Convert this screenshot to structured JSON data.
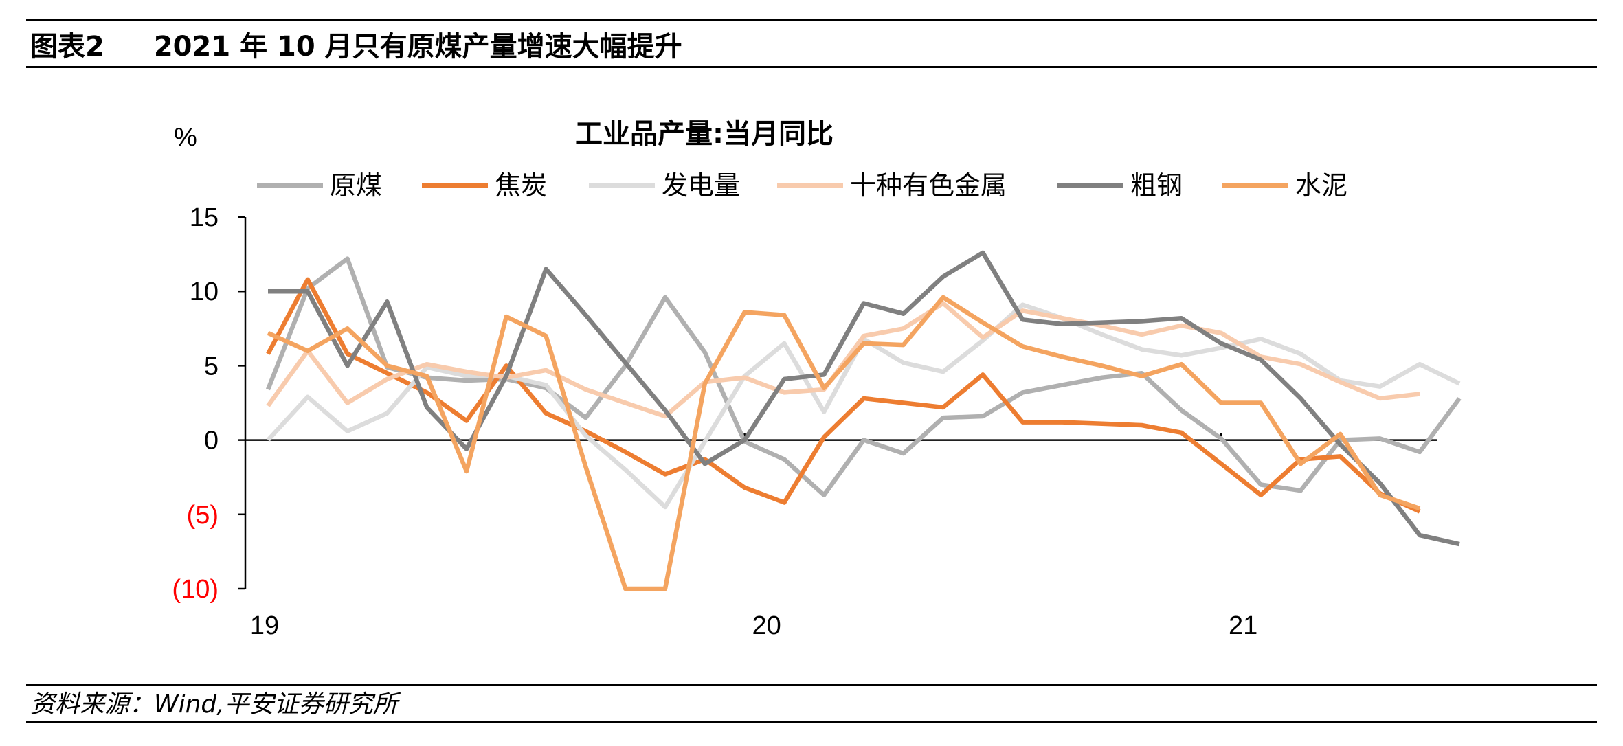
{
  "header": {
    "figure_no": "图表2",
    "title": "2021 年 10 月只有原煤产量增速大幅提升"
  },
  "footer": {
    "source": "资料来源：Wind,平安证券研究所"
  },
  "colors": {
    "negative_label": "#ff0000",
    "axis": "#000000"
  },
  "chart_data": {
    "type": "line",
    "title": "工业品产量:当月同比",
    "y_unit_label": "%",
    "ylim": [
      -10,
      15
    ],
    "y_ticks": [
      15,
      10,
      5,
      0,
      -5,
      -10
    ],
    "y_tick_labels": [
      "15",
      "10",
      "5",
      "0",
      "(5)",
      "(10)"
    ],
    "x_tick_labels": [
      "19",
      "20",
      "21"
    ],
    "x_tick_label_index": [
      0,
      12,
      24
    ],
    "grid": false,
    "legend_position": "top",
    "x": [
      "2019-01",
      "2019-02",
      "2019-03",
      "2019-04",
      "2019-05",
      "2019-06",
      "2019-07",
      "2019-08",
      "2019-09",
      "2019-10",
      "2019-11",
      "2019-12",
      "2020-01",
      "2020-02",
      "2020-03",
      "2020-04",
      "2020-05",
      "2020-06",
      "2020-07",
      "2020-08",
      "2020-09",
      "2020-10",
      "2020-11",
      "2020-12",
      "2021-01",
      "2021-02",
      "2021-03",
      "2021-04",
      "2021-05",
      "2021-06",
      "2021-07",
      "2021-08",
      "2021-09",
      "2021-10"
    ],
    "series": [
      {
        "name": "原煤",
        "color": "#b0b0b0",
        "values": [
          3.4,
          10.2,
          12.2,
          4.9,
          4.2,
          4.0,
          4.1,
          3.5,
          1.5,
          5.0,
          9.6,
          5.9,
          -0.1,
          -1.3,
          -3.7,
          0.0,
          -0.9,
          1.5,
          1.6,
          3.2,
          3.7,
          4.2,
          4.5,
          2.0,
          0.1,
          -3.0,
          -3.4,
          -0.0,
          0.1,
          -0.8,
          2.8,
          null,
          null,
          null
        ]
      },
      {
        "name": "焦炭",
        "color": "#ed7d31",
        "values": [
          5.8,
          10.8,
          5.8,
          4.5,
          3.2,
          1.3,
          5.0,
          1.8,
          0.6,
          -0.8,
          -2.3,
          -1.3,
          -3.2,
          -4.2,
          0.2,
          2.8,
          2.5,
          2.2,
          4.4,
          1.2,
          1.2,
          1.1,
          1.0,
          0.5,
          -1.6,
          -3.7,
          -1.3,
          -1.1,
          -3.6,
          -4.8,
          null,
          null,
          null,
          null
        ]
      },
      {
        "name": "发电量",
        "color": "#dcdcdc",
        "values": [
          0.0,
          2.9,
          0.6,
          1.8,
          4.9,
          4.3,
          4.3,
          3.7,
          0.3,
          -2.0,
          -4.5,
          -0.1,
          4.3,
          6.5,
          1.9,
          6.8,
          5.2,
          4.6,
          6.7,
          9.1,
          8.2,
          7.1,
          6.1,
          5.7,
          6.2,
          6.8,
          5.8,
          4.0,
          3.6,
          5.1,
          3.8,
          null,
          null,
          null
        ]
      },
      {
        "name": "十种有色金属",
        "color": "#f8cbad",
        "values": [
          2.3,
          6.0,
          2.5,
          4.1,
          5.1,
          4.6,
          4.2,
          4.7,
          3.4,
          2.5,
          1.6,
          3.9,
          4.2,
          3.2,
          3.4,
          7.0,
          7.5,
          9.2,
          6.9,
          8.7,
          8.2,
          7.7,
          7.1,
          7.7,
          7.2,
          5.6,
          5.1,
          3.9,
          2.8,
          3.1,
          null,
          null,
          null,
          null
        ]
      },
      {
        "name": "粗钢",
        "color": "#808080",
        "values": [
          10.0,
          10.0,
          5.0,
          9.3,
          2.2,
          -0.6,
          4.3,
          11.5,
          8.4,
          5.2,
          2.0,
          -1.6,
          0.0,
          4.1,
          4.4,
          9.2,
          8.5,
          11.0,
          12.6,
          8.1,
          7.8,
          7.9,
          8.0,
          8.2,
          6.5,
          5.4,
          2.8,
          -0.3,
          -2.9,
          -6.4,
          -7.0,
          null,
          null,
          null
        ]
      },
      {
        "name": "水泥",
        "color": "#f4a460",
        "values": [
          7.2,
          6.0,
          7.5,
          5.0,
          4.3,
          -2.1,
          8.3,
          7.0,
          -1.8,
          -10.0,
          -10.0,
          3.8,
          8.6,
          8.4,
          3.5,
          6.5,
          6.4,
          9.6,
          7.9,
          6.3,
          5.6,
          5.0,
          4.3,
          5.1,
          2.5,
          2.5,
          -1.6,
          0.4,
          -3.7,
          -4.6,
          null,
          null,
          null,
          null
        ]
      }
    ]
  }
}
